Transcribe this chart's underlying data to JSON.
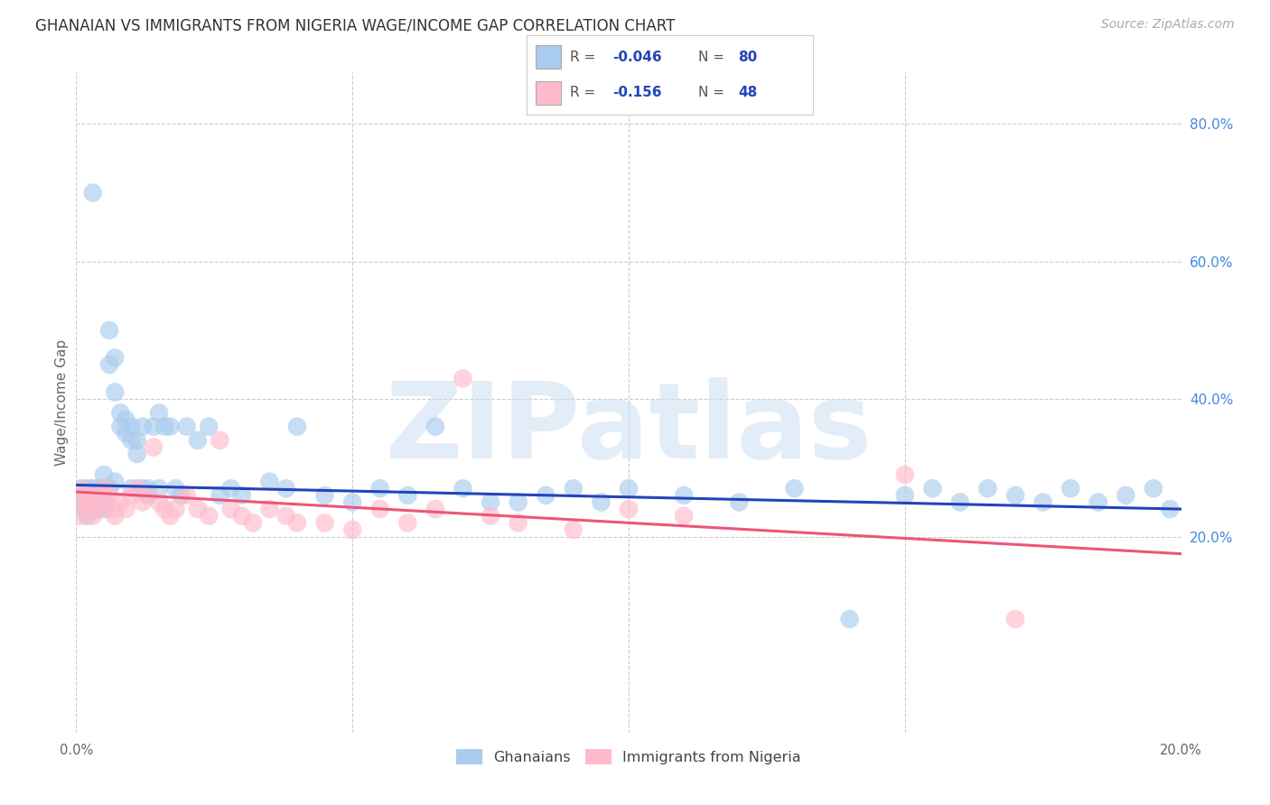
{
  "title": "GHANAIAN VS IMMIGRANTS FROM NIGERIA WAGE/INCOME GAP CORRELATION CHART",
  "source": "Source: ZipAtlas.com",
  "ylabel_label": "Wage/Income Gap",
  "x_min": 0.0,
  "x_max": 0.2,
  "y_min": -0.085,
  "y_max": 0.875,
  "ghanaian_color": "#aaccee",
  "nigeria_color": "#ffbbcc",
  "trend_blue": "#2244bb",
  "trend_pink": "#ee5577",
  "watermark": "ZIPatlas",
  "background": "#ffffff",
  "grid_color": "#cccccc",
  "title_color": "#333333",
  "right_axis_color": "#4488dd",
  "label_color": "#666666",
  "legend_value_color": "#2244bb",
  "y_ticks_right": [
    0.2,
    0.4,
    0.6,
    0.8
  ],
  "y_tick_labels_right": [
    "20.0%",
    "40.0%",
    "60.0%",
    "80.0%"
  ],
  "gh_x": [
    0.001,
    0.001,
    0.001,
    0.002,
    0.002,
    0.002,
    0.002,
    0.003,
    0.003,
    0.003,
    0.003,
    0.004,
    0.004,
    0.004,
    0.005,
    0.005,
    0.005,
    0.005,
    0.006,
    0.006,
    0.006,
    0.007,
    0.007,
    0.007,
    0.008,
    0.008,
    0.009,
    0.009,
    0.01,
    0.01,
    0.01,
    0.011,
    0.011,
    0.012,
    0.012,
    0.013,
    0.013,
    0.014,
    0.015,
    0.015,
    0.016,
    0.017,
    0.018,
    0.019,
    0.02,
    0.022,
    0.024,
    0.026,
    0.028,
    0.03,
    0.035,
    0.038,
    0.04,
    0.045,
    0.05,
    0.055,
    0.06,
    0.065,
    0.07,
    0.075,
    0.08,
    0.085,
    0.09,
    0.095,
    0.1,
    0.11,
    0.12,
    0.13,
    0.14,
    0.15,
    0.155,
    0.16,
    0.165,
    0.17,
    0.175,
    0.18,
    0.185,
    0.19,
    0.195,
    0.198
  ],
  "gh_y": [
    0.27,
    0.24,
    0.25,
    0.27,
    0.25,
    0.23,
    0.26,
    0.27,
    0.26,
    0.24,
    0.5,
    0.27,
    0.25,
    0.24,
    0.29,
    0.27,
    0.26,
    0.24,
    0.47,
    0.45,
    0.27,
    0.43,
    0.41,
    0.28,
    0.38,
    0.36,
    0.37,
    0.35,
    0.36,
    0.34,
    0.27,
    0.34,
    0.32,
    0.36,
    0.27,
    0.27,
    0.26,
    0.36,
    0.38,
    0.27,
    0.36,
    0.36,
    0.27,
    0.26,
    0.36,
    0.34,
    0.36,
    0.26,
    0.27,
    0.26,
    0.28,
    0.27,
    0.36,
    0.26,
    0.25,
    0.27,
    0.26,
    0.36,
    0.27,
    0.25,
    0.25,
    0.26,
    0.27,
    0.25,
    0.27,
    0.26,
    0.25,
    0.27,
    0.08,
    0.26,
    0.27,
    0.25,
    0.27,
    0.26,
    0.25,
    0.27,
    0.25,
    0.26,
    0.27,
    0.24
  ],
  "ng_x": [
    0.001,
    0.001,
    0.001,
    0.002,
    0.002,
    0.003,
    0.003,
    0.004,
    0.004,
    0.005,
    0.005,
    0.006,
    0.007,
    0.007,
    0.008,
    0.009,
    0.01,
    0.011,
    0.012,
    0.013,
    0.014,
    0.015,
    0.016,
    0.017,
    0.018,
    0.02,
    0.022,
    0.024,
    0.026,
    0.028,
    0.03,
    0.032,
    0.035,
    0.038,
    0.04,
    0.045,
    0.05,
    0.055,
    0.06,
    0.065,
    0.07,
    0.075,
    0.08,
    0.09,
    0.1,
    0.11,
    0.15,
    0.17
  ],
  "ng_y": [
    0.27,
    0.25,
    0.23,
    0.26,
    0.24,
    0.25,
    0.23,
    0.26,
    0.24,
    0.27,
    0.25,
    0.26,
    0.24,
    0.23,
    0.25,
    0.24,
    0.26,
    0.27,
    0.25,
    0.26,
    0.33,
    0.25,
    0.24,
    0.23,
    0.24,
    0.26,
    0.24,
    0.23,
    0.34,
    0.24,
    0.23,
    0.22,
    0.24,
    0.23,
    0.22,
    0.22,
    0.21,
    0.24,
    0.22,
    0.24,
    0.43,
    0.23,
    0.22,
    0.21,
    0.24,
    0.23,
    0.29,
    0.08
  ]
}
